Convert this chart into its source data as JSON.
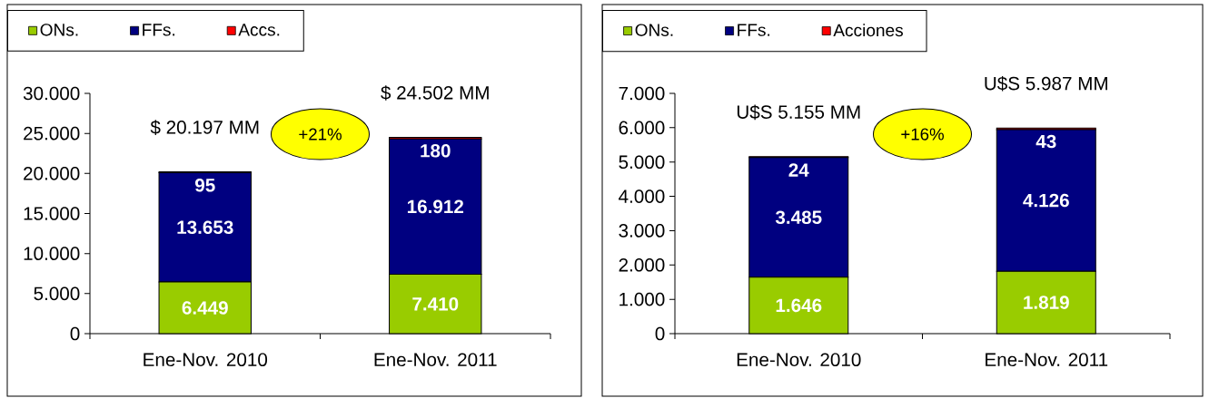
{
  "chart_data": [
    {
      "type": "bar",
      "stacked": true,
      "categories": [
        "Ene-Nov. 2010",
        "Ene-Nov. 2011"
      ],
      "series": [
        {
          "name": "ONs.",
          "color": "#99cc00",
          "values": [
            6449,
            7410
          ],
          "value_labels": [
            "6.449",
            "7.410"
          ]
        },
        {
          "name": "FFs.",
          "color": "#000080",
          "values": [
            13653,
            16912
          ],
          "value_labels": [
            "13.653",
            "16.912"
          ]
        },
        {
          "name": "Accs.",
          "color": "#ff0000",
          "values": [
            95,
            180
          ],
          "value_labels": [
            "95",
            "180"
          ]
        }
      ],
      "totals": [
        "$ 20.197 MM",
        "$ 24.502 MM"
      ],
      "annotations": [
        "+21%"
      ],
      "ylim": [
        0,
        30000
      ],
      "yticks": [
        0,
        {
          "value": 5000,
          "label": "5.000"
        },
        {
          "value": 10000,
          "label": "10.000"
        },
        {
          "value": 15000,
          "label": "15.000"
        },
        {
          "value": 20000,
          "label": "20.000"
        },
        {
          "value": 25000,
          "label": "25.000"
        },
        {
          "value": 30000,
          "label": "30.000"
        }
      ],
      "legend": "top left"
    },
    {
      "type": "bar",
      "stacked": true,
      "categories": [
        "Ene-Nov. 2010",
        "Ene-Nov. 2011"
      ],
      "series": [
        {
          "name": "ONs.",
          "color": "#99cc00",
          "values": [
            1646,
            1819
          ],
          "value_labels": [
            "1.646",
            "1.819"
          ]
        },
        {
          "name": "FFs.",
          "color": "#000080",
          "values": [
            3485,
            4126
          ],
          "value_labels": [
            "3.485",
            "4.126"
          ]
        },
        {
          "name": "Acciones",
          "color": "#ff0000",
          "values": [
            24,
            43
          ],
          "value_labels": [
            "24",
            "43"
          ]
        }
      ],
      "totals": [
        "U$S 5.155 MM",
        "U$S 5.987 MM"
      ],
      "annotations": [
        "+16%"
      ],
      "ylim": [
        0,
        7000
      ],
      "yticks": [
        0,
        {
          "value": 1000,
          "label": "1.000"
        },
        {
          "value": 2000,
          "label": "2.000"
        },
        {
          "value": 3000,
          "label": "3.000"
        },
        {
          "value": 4000,
          "label": "4.000"
        },
        {
          "value": 5000,
          "label": "5.000"
        },
        {
          "value": 6000,
          "label": "6.000"
        },
        {
          "value": 7000,
          "label": "7.000"
        }
      ],
      "legend": "top left"
    }
  ]
}
